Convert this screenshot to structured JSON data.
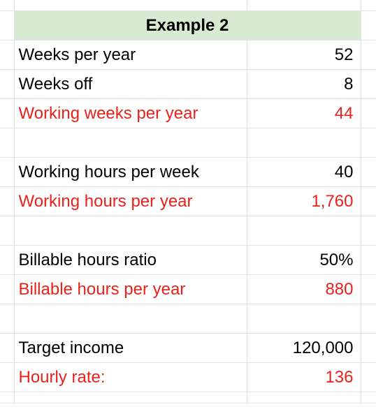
{
  "header": {
    "title": "Example 2"
  },
  "rows": [
    {
      "label": "Weeks per year",
      "value": "52",
      "highlight": false
    },
    {
      "label": "Weeks off",
      "value": "8",
      "highlight": false
    },
    {
      "label": "Working weeks per year",
      "value": "44",
      "highlight": true
    },
    {
      "label": "",
      "value": "",
      "highlight": false
    },
    {
      "label": "Working hours per week",
      "value": "40",
      "highlight": false
    },
    {
      "label": "Working hours per year",
      "value": "1,760",
      "highlight": true
    },
    {
      "label": "",
      "value": "",
      "highlight": false
    },
    {
      "label": "Billable hours ratio",
      "value": "50%",
      "highlight": false
    },
    {
      "label": "Billable hours per year",
      "value": "880",
      "highlight": true
    },
    {
      "label": "",
      "value": "",
      "highlight": false
    },
    {
      "label": "Target income",
      "value": "120,000",
      "highlight": false
    },
    {
      "label": "Hourly rate:",
      "value": "136",
      "highlight": true
    }
  ],
  "colors": {
    "header_fill": "#d9ead3",
    "highlight_text": "#e8221b",
    "gridline": "#e2e3e3"
  }
}
